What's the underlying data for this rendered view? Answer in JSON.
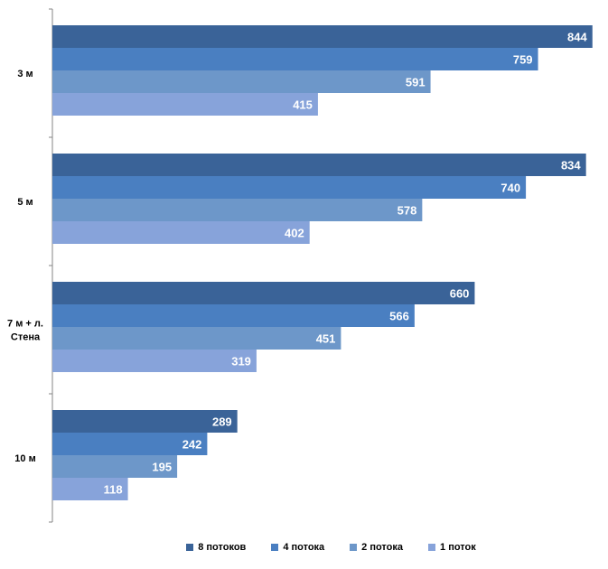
{
  "chart_data": {
    "type": "bar",
    "orientation": "horizontal",
    "categories": [
      "3 м",
      "5 м",
      "7 м + л. Стена",
      "10 м"
    ],
    "series": [
      {
        "name": "8 потоков",
        "color": "#3A6398",
        "values": [
          844,
          834,
          660,
          289
        ]
      },
      {
        "name": "4 потока",
        "color": "#4A7FC1",
        "values": [
          759,
          740,
          566,
          242
        ]
      },
      {
        "name": "2 потока",
        "color": "#6D97C9",
        "values": [
          591,
          578,
          451,
          195
        ]
      },
      {
        "name": "1 поток",
        "color": "#87A3DA",
        "values": [
          415,
          402,
          319,
          118
        ]
      }
    ],
    "xlim": [
      0,
      850
    ],
    "grid": false,
    "legend": "bottom",
    "data_labels": true
  }
}
